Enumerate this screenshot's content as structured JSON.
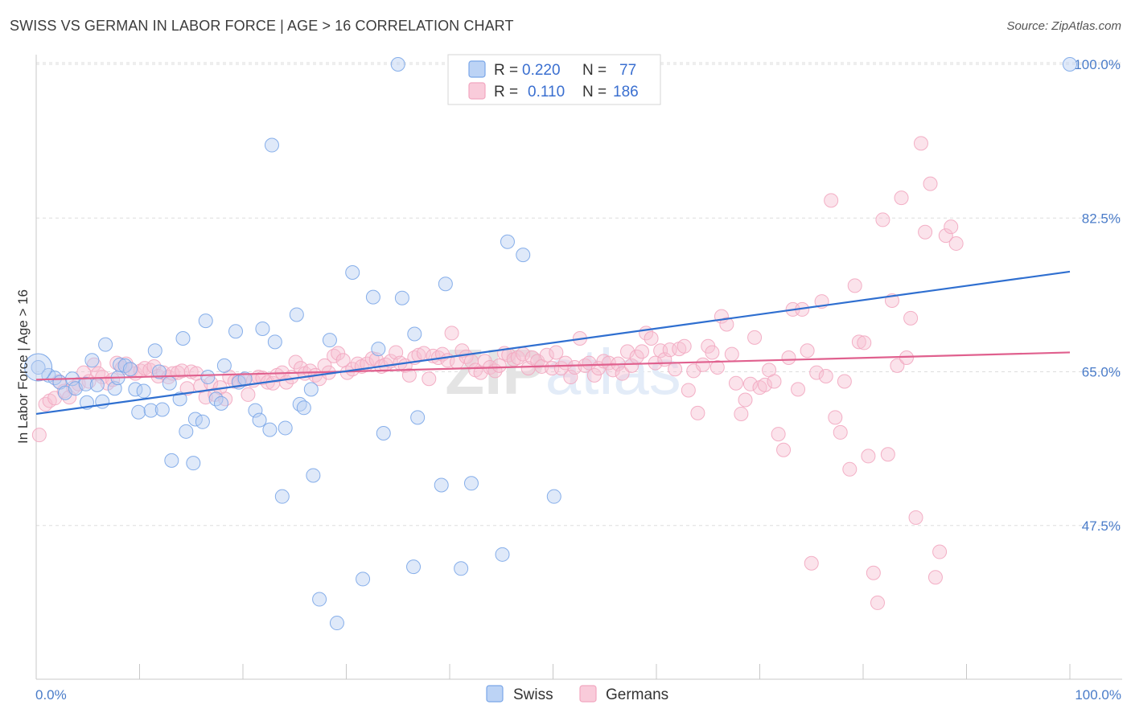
{
  "title": "SWISS VS GERMAN IN LABOR FORCE | AGE > 16 CORRELATION CHART",
  "source": "Source: ZipAtlas.com",
  "watermark": "ZIPatlas",
  "chart_data": {
    "type": "scatter",
    "ylabel": "In Labor Force | Age > 16",
    "xlim": [
      0,
      100
    ],
    "ylim": [
      30,
      100
    ],
    "x_tick_labels": [
      "0.0%",
      "100.0%"
    ],
    "y_ticks": [
      47.5,
      65.0,
      82.5,
      100.0
    ],
    "y_tick_labels": [
      "47.5%",
      "65.0%",
      "82.5%",
      "100.0%"
    ],
    "grid": "horizontal-dashed",
    "legend_placement": "top-center",
    "series": [
      {
        "name": "Swiss",
        "color": "#7aa6e8",
        "line_color": "#2f6fd0",
        "R": "0.220",
        "N": "77",
        "trend": [
          [
            0,
            60.2
          ],
          [
            100,
            76.4
          ]
        ],
        "points": [
          [
            0.2,
            65.5
          ],
          [
            1.2,
            64.6
          ],
          [
            1.8,
            64.3
          ],
          [
            2.3,
            63.8
          ],
          [
            2.8,
            62.6
          ],
          [
            3.5,
            64.2
          ],
          [
            3.8,
            63.1
          ],
          [
            4.8,
            63.6
          ],
          [
            4.9,
            61.5
          ],
          [
            5.4,
            66.3
          ],
          [
            5.9,
            63.5
          ],
          [
            6.4,
            61.6
          ],
          [
            6.7,
            68.1
          ],
          [
            7.6,
            63.1
          ],
          [
            7.9,
            64.3
          ],
          [
            8.1,
            65.8
          ],
          [
            8.6,
            65.7
          ],
          [
            9.1,
            65.3
          ],
          [
            9.6,
            63.0
          ],
          [
            9.9,
            60.4
          ],
          [
            10.4,
            62.8
          ],
          [
            11.1,
            60.6
          ],
          [
            11.5,
            67.4
          ],
          [
            11.9,
            65.0
          ],
          [
            12.2,
            60.7
          ],
          [
            12.9,
            63.7
          ],
          [
            13.1,
            54.9
          ],
          [
            13.9,
            61.9
          ],
          [
            14.2,
            68.8
          ],
          [
            14.5,
            58.2
          ],
          [
            15.2,
            54.6
          ],
          [
            15.4,
            59.6
          ],
          [
            16.1,
            59.3
          ],
          [
            16.4,
            70.8
          ],
          [
            16.6,
            64.4
          ],
          [
            17.4,
            61.9
          ],
          [
            17.9,
            61.4
          ],
          [
            18.2,
            65.7
          ],
          [
            19.3,
            69.6
          ],
          [
            19.6,
            63.8
          ],
          [
            20.2,
            64.2
          ],
          [
            21.2,
            60.6
          ],
          [
            21.6,
            59.5
          ],
          [
            21.9,
            69.9
          ],
          [
            22.6,
            58.4
          ],
          [
            22.8,
            90.8
          ],
          [
            23.1,
            68.4
          ],
          [
            23.8,
            50.8
          ],
          [
            24.1,
            58.6
          ],
          [
            25.2,
            71.5
          ],
          [
            25.5,
            61.3
          ],
          [
            25.9,
            60.9
          ],
          [
            26.6,
            63.0
          ],
          [
            26.8,
            53.2
          ],
          [
            27.4,
            39.1
          ],
          [
            28.4,
            68.6
          ],
          [
            29.1,
            36.4
          ],
          [
            30.6,
            76.3
          ],
          [
            31.6,
            41.4
          ],
          [
            32.6,
            73.5
          ],
          [
            33.1,
            67.6
          ],
          [
            33.6,
            58.0
          ],
          [
            35.0,
            100.0
          ],
          [
            35.4,
            73.4
          ],
          [
            36.5,
            42.8
          ],
          [
            36.6,
            69.3
          ],
          [
            36.9,
            59.8
          ],
          [
            39.2,
            52.1
          ],
          [
            39.6,
            75.0
          ],
          [
            41.1,
            42.6
          ],
          [
            42.1,
            52.3
          ],
          [
            45.1,
            44.2
          ],
          [
            45.6,
            79.8
          ],
          [
            47.1,
            78.3
          ],
          [
            50.1,
            50.8
          ],
          [
            51.1,
            100.0
          ],
          [
            100.0,
            100.0
          ]
        ]
      },
      {
        "name": "Germans",
        "color": "#f2a7c0",
        "line_color": "#e0608e",
        "R": "0.110",
        "N": "186",
        "trend": [
          [
            0,
            64.1
          ],
          [
            100,
            67.2
          ]
        ],
        "points": [
          [
            0.3,
            57.8
          ],
          [
            0.9,
            61.3
          ],
          [
            1.3,
            61.7
          ],
          [
            1.8,
            62.0
          ],
          [
            2.2,
            63.9
          ],
          [
            2.7,
            62.8
          ],
          [
            3.2,
            62.1
          ],
          [
            3.6,
            63.2
          ],
          [
            4.1,
            63.6
          ],
          [
            4.6,
            64.9
          ],
          [
            5.1,
            63.9
          ],
          [
            5.6,
            65.8
          ],
          [
            6.0,
            64.8
          ],
          [
            6.4,
            64.4
          ],
          [
            6.9,
            63.7
          ],
          [
            7.4,
            64.1
          ],
          [
            7.8,
            66.0
          ],
          [
            8.3,
            65.4
          ],
          [
            8.7,
            65.9
          ],
          [
            9.2,
            65.2
          ],
          [
            9.6,
            64.8
          ],
          [
            10.1,
            65.1
          ],
          [
            10.5,
            65.4
          ],
          [
            11.0,
            65.2
          ],
          [
            11.4,
            65.6
          ],
          [
            11.8,
            64.5
          ],
          [
            12.3,
            64.9
          ],
          [
            12.8,
            64.4
          ],
          [
            13.2,
            64.8
          ],
          [
            13.7,
            64.9
          ],
          [
            14.1,
            65.1
          ],
          [
            14.6,
            63.1
          ],
          [
            15.0,
            65.0
          ],
          [
            15.5,
            64.8
          ],
          [
            15.9,
            63.4
          ],
          [
            16.4,
            62.1
          ],
          [
            16.9,
            63.7
          ],
          [
            17.3,
            62.4
          ],
          [
            17.8,
            63.2
          ],
          [
            18.3,
            61.9
          ],
          [
            18.7,
            64.4
          ],
          [
            19.2,
            63.9
          ],
          [
            19.6,
            64.0
          ],
          [
            20.1,
            64.1
          ],
          [
            20.5,
            62.4
          ],
          [
            21.0,
            64.0
          ],
          [
            21.5,
            64.4
          ],
          [
            21.9,
            64.3
          ],
          [
            22.4,
            63.8
          ],
          [
            22.9,
            63.7
          ],
          [
            23.3,
            64.6
          ],
          [
            23.8,
            64.9
          ],
          [
            24.2,
            63.8
          ],
          [
            24.7,
            64.4
          ],
          [
            25.1,
            66.1
          ],
          [
            25.6,
            65.4
          ],
          [
            26.0,
            64.8
          ],
          [
            26.5,
            65.1
          ],
          [
            27.0,
            64.6
          ],
          [
            27.4,
            64.2
          ],
          [
            27.9,
            65.7
          ],
          [
            28.3,
            64.9
          ],
          [
            28.8,
            66.8
          ],
          [
            29.2,
            67.1
          ],
          [
            29.7,
            66.3
          ],
          [
            30.1,
            64.9
          ],
          [
            30.6,
            65.3
          ],
          [
            31.1,
            65.9
          ],
          [
            31.5,
            65.6
          ],
          [
            32.0,
            65.9
          ],
          [
            32.5,
            66.5
          ],
          [
            32.9,
            66.4
          ],
          [
            33.4,
            65.6
          ],
          [
            33.8,
            65.8
          ],
          [
            34.3,
            66.2
          ],
          [
            34.8,
            67.2
          ],
          [
            35.2,
            66.0
          ],
          [
            35.7,
            65.7
          ],
          [
            36.1,
            64.6
          ],
          [
            36.6,
            66.6
          ],
          [
            37.0,
            66.9
          ],
          [
            37.5,
            67.1
          ],
          [
            38.0,
            64.2
          ],
          [
            38.4,
            66.8
          ],
          [
            38.9,
            66.6
          ],
          [
            39.3,
            67.0
          ],
          [
            39.8,
            66.3
          ],
          [
            40.2,
            69.4
          ],
          [
            40.7,
            66.1
          ],
          [
            41.2,
            67.4
          ],
          [
            41.6,
            66.7
          ],
          [
            42.1,
            66.2
          ],
          [
            42.5,
            65.2
          ],
          [
            43.0,
            64.9
          ],
          [
            43.4,
            66.2
          ],
          [
            43.9,
            65.5
          ],
          [
            44.4,
            65.1
          ],
          [
            44.8,
            65.7
          ],
          [
            45.3,
            67.1
          ],
          [
            45.7,
            66.9
          ],
          [
            46.2,
            66.4
          ],
          [
            46.6,
            66.6
          ],
          [
            47.1,
            67.0
          ],
          [
            47.6,
            65.4
          ],
          [
            48.0,
            66.6
          ],
          [
            48.5,
            66.2
          ],
          [
            48.9,
            65.6
          ],
          [
            49.4,
            66.9
          ],
          [
            49.9,
            65.4
          ],
          [
            50.3,
            67.2
          ],
          [
            50.8,
            65.4
          ],
          [
            51.2,
            66.0
          ],
          [
            51.7,
            64.4
          ],
          [
            52.1,
            65.5
          ],
          [
            52.6,
            68.8
          ],
          [
            53.1,
            65.7
          ],
          [
            53.5,
            66.0
          ],
          [
            54.0,
            64.6
          ],
          [
            54.4,
            65.4
          ],
          [
            54.9,
            66.2
          ],
          [
            55.4,
            66.0
          ],
          [
            55.8,
            65.2
          ],
          [
            56.3,
            65.9
          ],
          [
            56.7,
            64.8
          ],
          [
            57.2,
            67.3
          ],
          [
            57.6,
            65.7
          ],
          [
            58.1,
            66.7
          ],
          [
            58.6,
            67.3
          ],
          [
            59.0,
            69.4
          ],
          [
            59.5,
            68.8
          ],
          [
            59.9,
            66.0
          ],
          [
            60.4,
            67.4
          ],
          [
            60.8,
            66.4
          ],
          [
            61.3,
            67.5
          ],
          [
            61.8,
            65.3
          ],
          [
            62.2,
            67.6
          ],
          [
            62.7,
            67.9
          ],
          [
            63.1,
            62.9
          ],
          [
            63.6,
            65.1
          ],
          [
            64.0,
            60.3
          ],
          [
            64.5,
            65.8
          ],
          [
            65.0,
            67.9
          ],
          [
            65.4,
            67.2
          ],
          [
            65.9,
            65.5
          ],
          [
            66.3,
            71.3
          ],
          [
            66.8,
            70.4
          ],
          [
            67.3,
            67.0
          ],
          [
            67.7,
            63.7
          ],
          [
            68.2,
            60.2
          ],
          [
            68.6,
            61.8
          ],
          [
            69.1,
            63.6
          ],
          [
            69.5,
            68.9
          ],
          [
            70.0,
            63.2
          ],
          [
            70.5,
            63.5
          ],
          [
            70.9,
            65.2
          ],
          [
            71.4,
            63.9
          ],
          [
            71.8,
            57.9
          ],
          [
            72.3,
            56.1
          ],
          [
            72.8,
            66.6
          ],
          [
            73.2,
            72.1
          ],
          [
            73.7,
            63.0
          ],
          [
            74.1,
            72.1
          ],
          [
            74.6,
            67.4
          ],
          [
            75.0,
            43.2
          ],
          [
            75.5,
            64.9
          ],
          [
            76.0,
            73.0
          ],
          [
            76.4,
            64.5
          ],
          [
            76.9,
            84.5
          ],
          [
            77.3,
            59.8
          ],
          [
            77.8,
            58.1
          ],
          [
            78.2,
            63.9
          ],
          [
            78.7,
            53.9
          ],
          [
            79.2,
            74.8
          ],
          [
            79.6,
            68.4
          ],
          [
            80.1,
            68.3
          ],
          [
            80.5,
            55.4
          ],
          [
            81.0,
            42.1
          ],
          [
            81.4,
            38.7
          ],
          [
            81.9,
            82.3
          ],
          [
            82.4,
            55.6
          ],
          [
            82.8,
            73.1
          ],
          [
            83.3,
            65.7
          ],
          [
            83.7,
            84.8
          ],
          [
            84.2,
            66.6
          ],
          [
            84.6,
            71.1
          ],
          [
            85.1,
            48.4
          ],
          [
            85.6,
            91.0
          ],
          [
            86.0,
            80.9
          ],
          [
            86.5,
            86.4
          ],
          [
            87.0,
            41.6
          ],
          [
            87.4,
            44.5
          ],
          [
            88.0,
            80.5
          ],
          [
            88.5,
            81.5
          ],
          [
            89.0,
            79.6
          ]
        ]
      }
    ]
  }
}
